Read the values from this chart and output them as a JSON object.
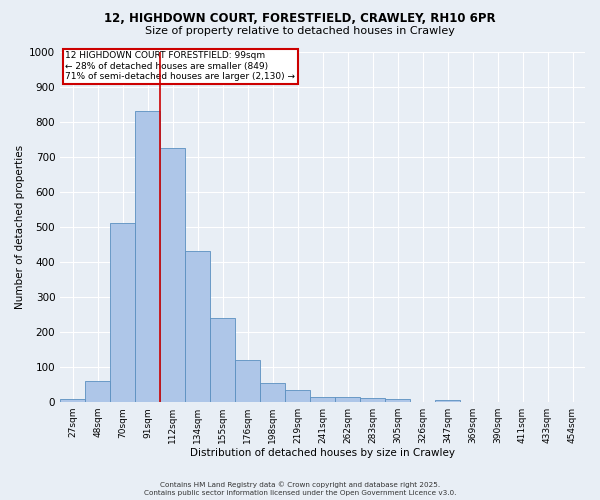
{
  "title_line1": "12, HIGHDOWN COURT, FORESTFIELD, CRAWLEY, RH10 6PR",
  "title_line2": "Size of property relative to detached houses in Crawley",
  "xlabel": "Distribution of detached houses by size in Crawley",
  "ylabel": "Number of detached properties",
  "bar_labels": [
    "27sqm",
    "48sqm",
    "70sqm",
    "91sqm",
    "112sqm",
    "134sqm",
    "155sqm",
    "176sqm",
    "198sqm",
    "219sqm",
    "241sqm",
    "262sqm",
    "283sqm",
    "305sqm",
    "326sqm",
    "347sqm",
    "369sqm",
    "390sqm",
    "411sqm",
    "433sqm",
    "454sqm"
  ],
  "bar_values": [
    10,
    60,
    510,
    830,
    725,
    430,
    240,
    120,
    55,
    35,
    15,
    15,
    12,
    10,
    0,
    5,
    0,
    0,
    0,
    0,
    0
  ],
  "bar_color": "#aec6e8",
  "bar_edge_color": "#5a8fc0",
  "vline_x": 3.5,
  "vline_color": "#cc0000",
  "annotation_text": "12 HIGHDOWN COURT FORESTFIELD: 99sqm\n← 28% of detached houses are smaller (849)\n71% of semi-detached houses are larger (2,130) →",
  "annotation_box_color": "#ffffff",
  "annotation_box_edge": "#cc0000",
  "ylim": [
    0,
    1000
  ],
  "yticks": [
    0,
    100,
    200,
    300,
    400,
    500,
    600,
    700,
    800,
    900,
    1000
  ],
  "background_color": "#e8eef5",
  "grid_color": "#ffffff",
  "footer_line1": "Contains HM Land Registry data © Crown copyright and database right 2025.",
  "footer_line2": "Contains public sector information licensed under the Open Government Licence v3.0."
}
